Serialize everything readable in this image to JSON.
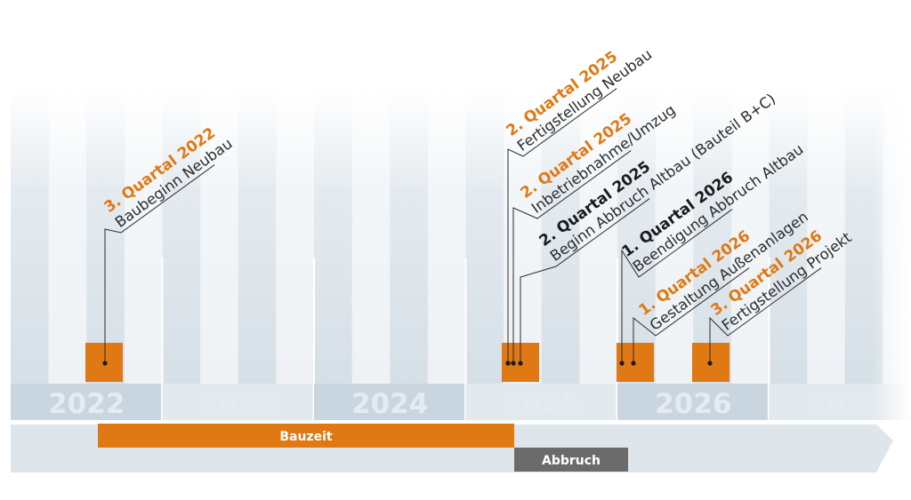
{
  "years": [
    "2022",
    "2023",
    "2024",
    "2025",
    "2026",
    "2027"
  ],
  "milestones": [
    {
      "date": "3. Quartal 2022",
      "label": "Baubeginn Neubau",
      "date_color": "#e07813"
    },
    {
      "date": "2. Quartal 2025",
      "label": "Fertigstellung Neubau",
      "date_color": "#e07813"
    },
    {
      "date": "2. Quartal 2025",
      "label": "Inbetriebnahme/Umzug",
      "date_color": "#e07813"
    },
    {
      "date": "2. Quartal 2025",
      "label": "Beginn Abbruch Altbau (Bauteil B+C)",
      "date_color": "#1a1a1a"
    },
    {
      "date": "1. Quartal 2026",
      "label": "Beendigung Abbruch Altbau",
      "date_color": "#1a1a1a"
    },
    {
      "date": "1. Quartal 2026",
      "label": "Gestaltung Außenanlagen",
      "date_color": "#e07813"
    },
    {
      "date": "3. Quartal 2026",
      "label": "Fertigstellung Projekt",
      "date_color": "#e07813"
    }
  ],
  "phases": {
    "bauzeit": {
      "label": "Bauzeit",
      "color": "#e07813"
    },
    "abbruch": {
      "label": "Abbruch",
      "color": "#6b6b6b"
    }
  },
  "colors": {
    "accent": "#e07813",
    "dark": "#1a1a1a",
    "year_band": "#c9d6df",
    "arrow": "#dfe6eb"
  }
}
